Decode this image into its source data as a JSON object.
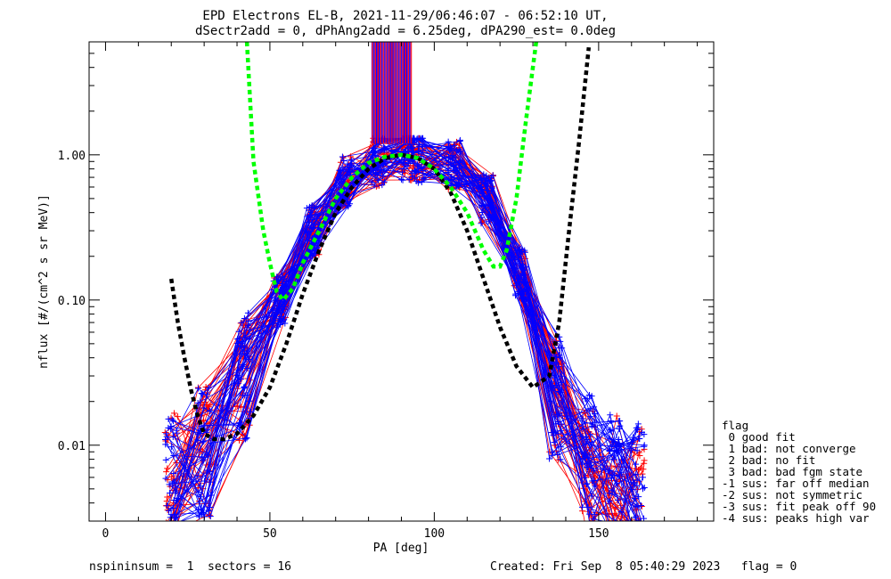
{
  "title_line1": "EPD Electrons EL-B, 2021-11-29/06:46:07 - 06:52:10 UT,",
  "title_line2": "dSectr2add = 0, dPhAng2add = 6.25deg, dPA290_est=    0.0deg",
  "footer_left": "nspininsum =  1  sectors = 16",
  "footer_right": "Created: Fri Sep  8 05:40:29 2023   flag = 0",
  "legend": {
    "title": "flag",
    "items": [
      " 0 good fit",
      " 1 bad: not converge",
      " 2 bad: no fit",
      " 3 bad: bad fgm state",
      "-1 sus: far off median",
      "-2 sus: not symmetric",
      "-3 sus: fit peak off 90",
      "-4 sus: peaks high var"
    ]
  },
  "colors": {
    "red": "#ff0000",
    "blue": "#0000ff",
    "green": "#00ff00",
    "black": "#000000",
    "purple": "#8800aa"
  },
  "chart_data": {
    "type": "line",
    "xlabel": "PA [deg]",
    "ylabel": "nflux [#/(cm^2 s sr MeV)]",
    "xlim": [
      -5,
      185
    ],
    "ylim": [
      0.003,
      6
    ],
    "yscale": "log",
    "xticks": [
      0,
      50,
      100,
      150
    ],
    "yticks": [
      {
        "v": 0.01,
        "label": "0.01"
      },
      {
        "v": 0.1,
        "label": "0.10"
      },
      {
        "v": 1.0,
        "label": "1.00"
      }
    ],
    "grid": false,
    "pa_bins_dn": [
      20,
      30,
      42,
      53,
      63,
      73,
      83,
      92
    ],
    "pa_bins_up": [
      95,
      106,
      116,
      126,
      137,
      147,
      155,
      162
    ],
    "median_dn": [
      0.006,
      0.009,
      0.03,
      0.1,
      0.3,
      0.65,
      0.9,
      1.0
    ],
    "median_up": [
      0.95,
      0.85,
      0.5,
      0.15,
      0.02,
      0.008,
      0.006,
      0.005
    ],
    "fit_black": {
      "x": [
        20,
        22,
        24,
        26,
        28,
        30,
        33,
        36,
        40,
        45,
        50,
        55,
        60,
        65,
        70,
        75,
        80,
        85,
        90,
        95,
        100,
        105,
        110,
        115,
        120,
        125,
        130,
        135,
        138,
        141,
        144,
        147
      ],
      "y": [
        0.14,
        0.07,
        0.04,
        0.024,
        0.016,
        0.012,
        0.011,
        0.011,
        0.012,
        0.016,
        0.025,
        0.05,
        0.11,
        0.22,
        0.4,
        0.6,
        0.8,
        0.95,
        1.0,
        0.95,
        0.8,
        0.55,
        0.3,
        0.14,
        0.065,
        0.035,
        0.025,
        0.03,
        0.07,
        0.3,
        1.2,
        5.5
      ]
    },
    "fit_green": {
      "x": [
        43,
        45,
        48,
        50,
        52,
        54,
        57,
        60,
        65,
        70,
        75,
        80,
        85,
        90,
        95,
        100,
        105,
        110,
        115,
        118,
        120,
        122,
        125,
        128,
        131
      ],
      "y": [
        6,
        0.9,
        0.3,
        0.18,
        0.115,
        0.1,
        0.12,
        0.18,
        0.3,
        0.5,
        0.7,
        0.88,
        0.97,
        1.0,
        0.95,
        0.8,
        0.6,
        0.4,
        0.22,
        0.17,
        0.17,
        0.22,
        0.5,
        1.8,
        6
      ]
    }
  }
}
